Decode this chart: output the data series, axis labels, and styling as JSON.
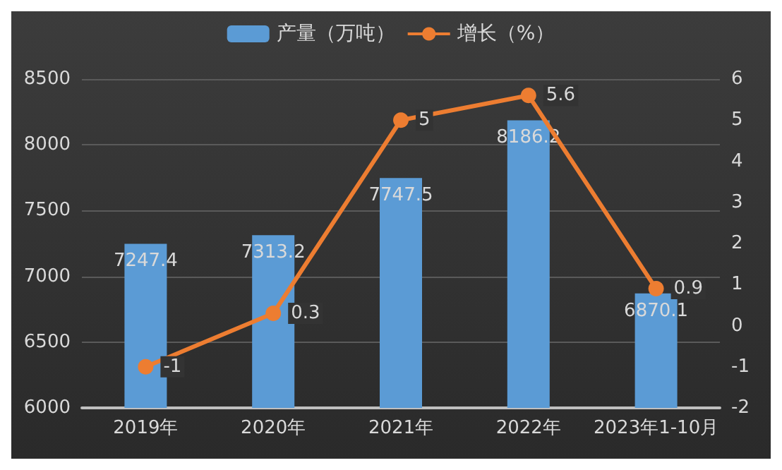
{
  "chart_data": {
    "type": "bar",
    "categories": [
      "2019年",
      "2020年",
      "2021年",
      "2022年",
      "2023年1-10月"
    ],
    "series": [
      {
        "name": "产量（万吨）",
        "color": "#5b9bd5",
        "values": [
          7247.4,
          7313.2,
          7747.5,
          8186.2,
          6870.1
        ]
      },
      {
        "name": "增长（%）",
        "type": "line",
        "axis": "y2",
        "color": "#ed7d31",
        "values": [
          -1,
          0.3,
          5,
          5.6,
          0.9
        ]
      }
    ],
    "ylim": [
      6000,
      8500
    ],
    "yticks": [
      6000,
      6500,
      7000,
      7500,
      8000,
      8500
    ],
    "y2lim": [
      -2,
      6
    ],
    "y2ticks": [
      -2,
      -1,
      0,
      1,
      2,
      3,
      4,
      5,
      6
    ],
    "grid": "y",
    "legend": "top",
    "marker": "circle",
    "data_labels": true
  }
}
